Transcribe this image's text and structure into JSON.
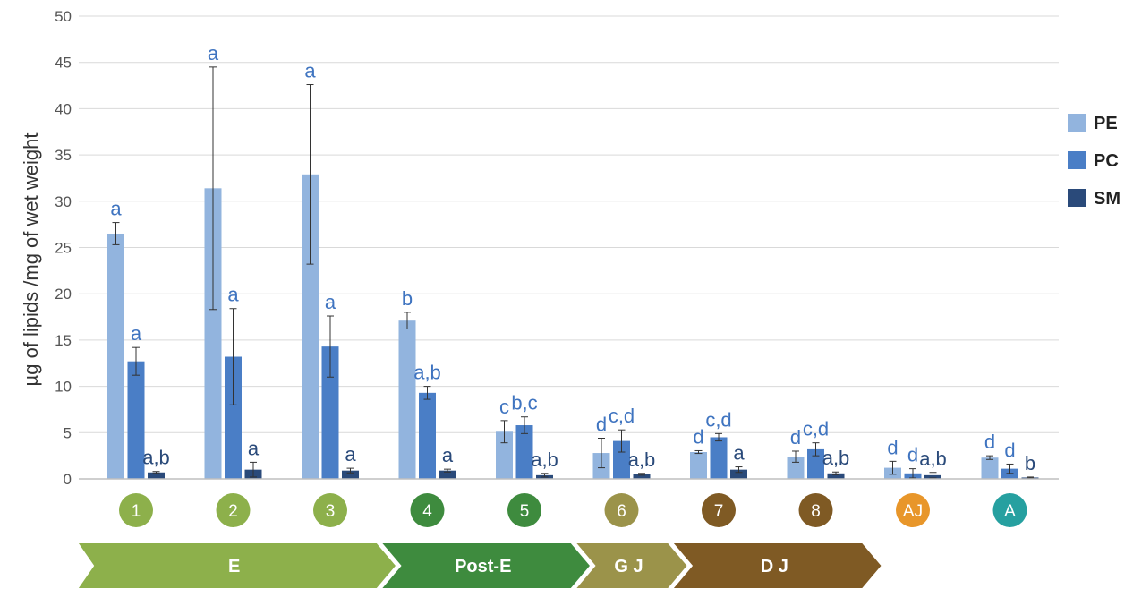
{
  "chart_data": {
    "type": "bar",
    "ylabel": "µg of lipids /mg of wet weight",
    "ylim": [
      0,
      50
    ],
    "yticks": [
      0,
      5,
      10,
      15,
      20,
      25,
      30,
      35,
      40,
      45,
      50
    ],
    "grid": true,
    "legend_position": "right",
    "categories": [
      "1",
      "2",
      "3",
      "4",
      "5",
      "6",
      "7",
      "8",
      "AJ",
      "A"
    ],
    "category_colors": [
      "#8db04b",
      "#8db04b",
      "#8db04b",
      "#3e8b3e",
      "#3e8b3e",
      "#9b934a",
      "#7f5a24",
      "#7f5a24",
      "#e8962a",
      "#26a0a0"
    ],
    "series": [
      {
        "name": "PE",
        "color": "#92b4de",
        "values": [
          26.5,
          31.4,
          32.9,
          17.1,
          5.1,
          2.8,
          2.9,
          2.4,
          1.2,
          2.3
        ],
        "errors": [
          1.2,
          13.1,
          9.7,
          0.9,
          1.2,
          1.6,
          0.15,
          0.6,
          0.7,
          0.2
        ],
        "letters": [
          "a",
          "a",
          "a",
          "b",
          "c",
          "d",
          "d",
          "d",
          "d",
          "d"
        ]
      },
      {
        "name": "PC",
        "color": "#4a7ec6",
        "values": [
          12.7,
          13.2,
          14.3,
          9.3,
          5.8,
          4.1,
          4.5,
          3.2,
          0.6,
          1.1
        ],
        "errors": [
          1.5,
          5.2,
          3.3,
          0.7,
          0.9,
          1.2,
          0.4,
          0.7,
          0.5,
          0.5
        ],
        "letters": [
          "a",
          "a",
          "a",
          "a,b",
          "b,c",
          "c,d",
          "c,d",
          "c,d",
          "d",
          "d"
        ]
      },
      {
        "name": "SM",
        "color": "#2a4a7a",
        "values": [
          0.7,
          1.0,
          0.9,
          0.9,
          0.4,
          0.5,
          1.0,
          0.6,
          0.4,
          0.15
        ],
        "errors": [
          0.1,
          0.8,
          0.25,
          0.15,
          0.2,
          0.1,
          0.3,
          0.15,
          0.3,
          0.05
        ],
        "letters": [
          "a,b",
          "a",
          "a",
          "a",
          "a,b",
          "a,b",
          "a",
          "a,b",
          "a,b",
          "b"
        ]
      }
    ],
    "phases": [
      {
        "label": "E",
        "color": "#8db04b",
        "from": 0,
        "to": 2
      },
      {
        "label": "Post-E",
        "color": "#3e8b3e",
        "from": 3,
        "to": 4
      },
      {
        "label": "G J",
        "color": "#9b934a",
        "from": 5,
        "to": 5
      },
      {
        "label": "D J",
        "color": "#7f5a24",
        "from": 6,
        "to": 7
      }
    ]
  }
}
